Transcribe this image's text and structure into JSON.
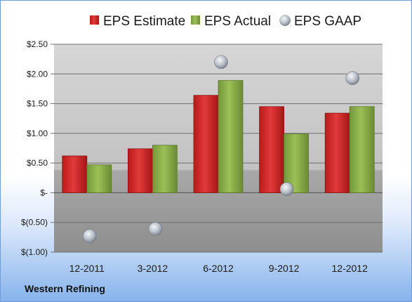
{
  "company": "Western Refining",
  "colors": {
    "estimate": "#d42a2a",
    "actual": "#8fb34b",
    "gaap": "#b9bfc8",
    "plot_upper": "#c9c9c9",
    "plot_lower": "#9e9e9e"
  },
  "chart_data": {
    "type": "bar",
    "categories": [
      "12-2011",
      "3-2012",
      "6-2012",
      "9-2012",
      "12-2012"
    ],
    "series": [
      {
        "name": "EPS Estimate",
        "type": "bar",
        "values": [
          0.62,
          0.74,
          1.64,
          1.45,
          1.34
        ]
      },
      {
        "name": "EPS Actual",
        "type": "bar",
        "values": [
          0.47,
          0.8,
          1.89,
          0.99,
          1.45
        ]
      },
      {
        "name": "EPS GAAP",
        "type": "scatter",
        "values": [
          -0.73,
          -0.61,
          2.2,
          0.06,
          1.93
        ]
      }
    ],
    "ylim": [
      -1.0,
      2.5
    ],
    "yticks": [
      2.5,
      2.0,
      1.5,
      1.0,
      0.5,
      0,
      -0.5,
      -1.0
    ],
    "ytick_labels": [
      "$2.50",
      "$2.00",
      "$1.50",
      "$1.00",
      "$0.50",
      "$-",
      "$(0.50)",
      "$(1.00)"
    ],
    "grid": true,
    "legend_position": "top"
  }
}
